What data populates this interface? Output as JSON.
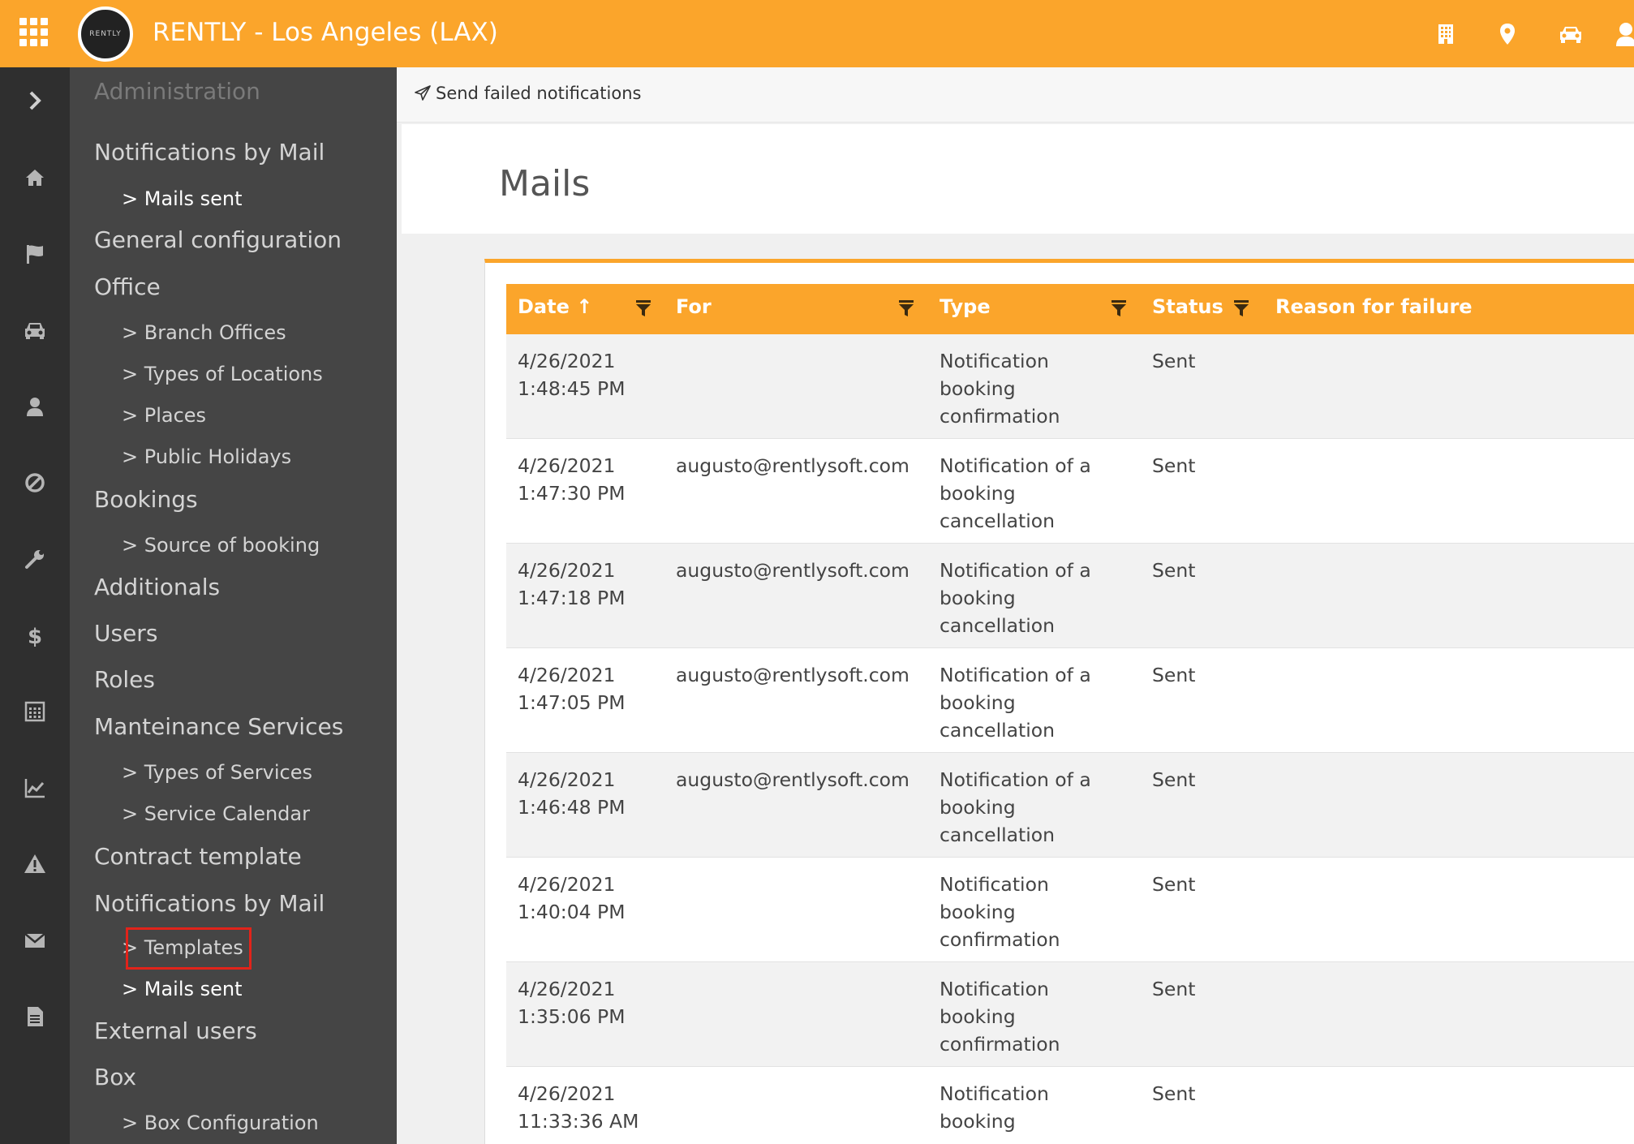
{
  "header": {
    "title": "RENTLY - Los Angeles (LAX)",
    "logo_text": "RENTLY",
    "icons": [
      "grid-icon",
      "building-icon",
      "location-pin-icon",
      "car-icon",
      "user-icon"
    ]
  },
  "rail": {
    "icons": [
      "chevron-right-icon",
      "home-icon",
      "flag-icon",
      "car-icon",
      "user-icon",
      "ban-icon",
      "wrench-icon",
      "dollar-icon",
      "calendar-icon",
      "chart-icon",
      "warning-icon",
      "envelope-icon",
      "document-icon"
    ]
  },
  "sidemenu": {
    "title": "Administration",
    "items": [
      {
        "label": "Notifications by Mail"
      },
      {
        "label": "> Mails sent"
      },
      {
        "label": "General configuration"
      },
      {
        "label": "Office"
      },
      {
        "label": "> Branch Offices"
      },
      {
        "label": "> Types of Locations"
      },
      {
        "label": "> Places"
      },
      {
        "label": "> Public Holidays"
      },
      {
        "label": "Bookings"
      },
      {
        "label": "> Source of booking"
      },
      {
        "label": "Additionals"
      },
      {
        "label": "Users"
      },
      {
        "label": "Roles"
      },
      {
        "label": "Manteinance Services"
      },
      {
        "label": "> Types of Services"
      },
      {
        "label": "> Service Calendar"
      },
      {
        "label": "Contract template"
      },
      {
        "label": "Notifications by Mail"
      },
      {
        "label": "> Templates"
      },
      {
        "label": "> Mails sent"
      },
      {
        "label": "External users"
      },
      {
        "label": "Box"
      },
      {
        "label": "> Box Configuration"
      }
    ]
  },
  "actions": {
    "send_failed": "Send failed notifications"
  },
  "page": {
    "title": "Mails"
  },
  "table": {
    "columns": {
      "date": "Date",
      "date_sort": "↑",
      "for": "For",
      "type": "Type",
      "status": "Status",
      "reason": "Reason for failure"
    },
    "rows": [
      {
        "date": "4/26/2021\n1:48:45 PM",
        "for": "",
        "type": "Notification\nbooking\nconfirmation",
        "status": "Sent",
        "reason": ""
      },
      {
        "date": "4/26/2021\n1:47:30 PM",
        "for": "augusto@rentlysoft.com",
        "type": "Notification of a\nbooking\ncancellation",
        "status": "Sent",
        "reason": ""
      },
      {
        "date": "4/26/2021\n1:47:18 PM",
        "for": "augusto@rentlysoft.com",
        "type": "Notification of a\nbooking\ncancellation",
        "status": "Sent",
        "reason": ""
      },
      {
        "date": "4/26/2021\n1:47:05 PM",
        "for": "augusto@rentlysoft.com",
        "type": "Notification of a\nbooking\ncancellation",
        "status": "Sent",
        "reason": ""
      },
      {
        "date": "4/26/2021\n1:46:48 PM",
        "for": "augusto@rentlysoft.com",
        "type": "Notification of a\nbooking\ncancellation",
        "status": "Sent",
        "reason": ""
      },
      {
        "date": "4/26/2021\n1:40:04 PM",
        "for": "",
        "type": "Notification\nbooking\nconfirmation",
        "status": "Sent",
        "reason": ""
      },
      {
        "date": "4/26/2021\n1:35:06 PM",
        "for": "",
        "type": "Notification\nbooking\nconfirmation",
        "status": "Sent",
        "reason": ""
      },
      {
        "date": "4/26/2021\n11:33:36 AM",
        "for": "",
        "type": "Notification\nbooking",
        "status": "Sent",
        "reason": ""
      }
    ]
  },
  "colors": {
    "accent": "#fba52b",
    "rail": "#2f2f2f",
    "sidemenu": "#454545",
    "highlight": "#e2231a"
  }
}
